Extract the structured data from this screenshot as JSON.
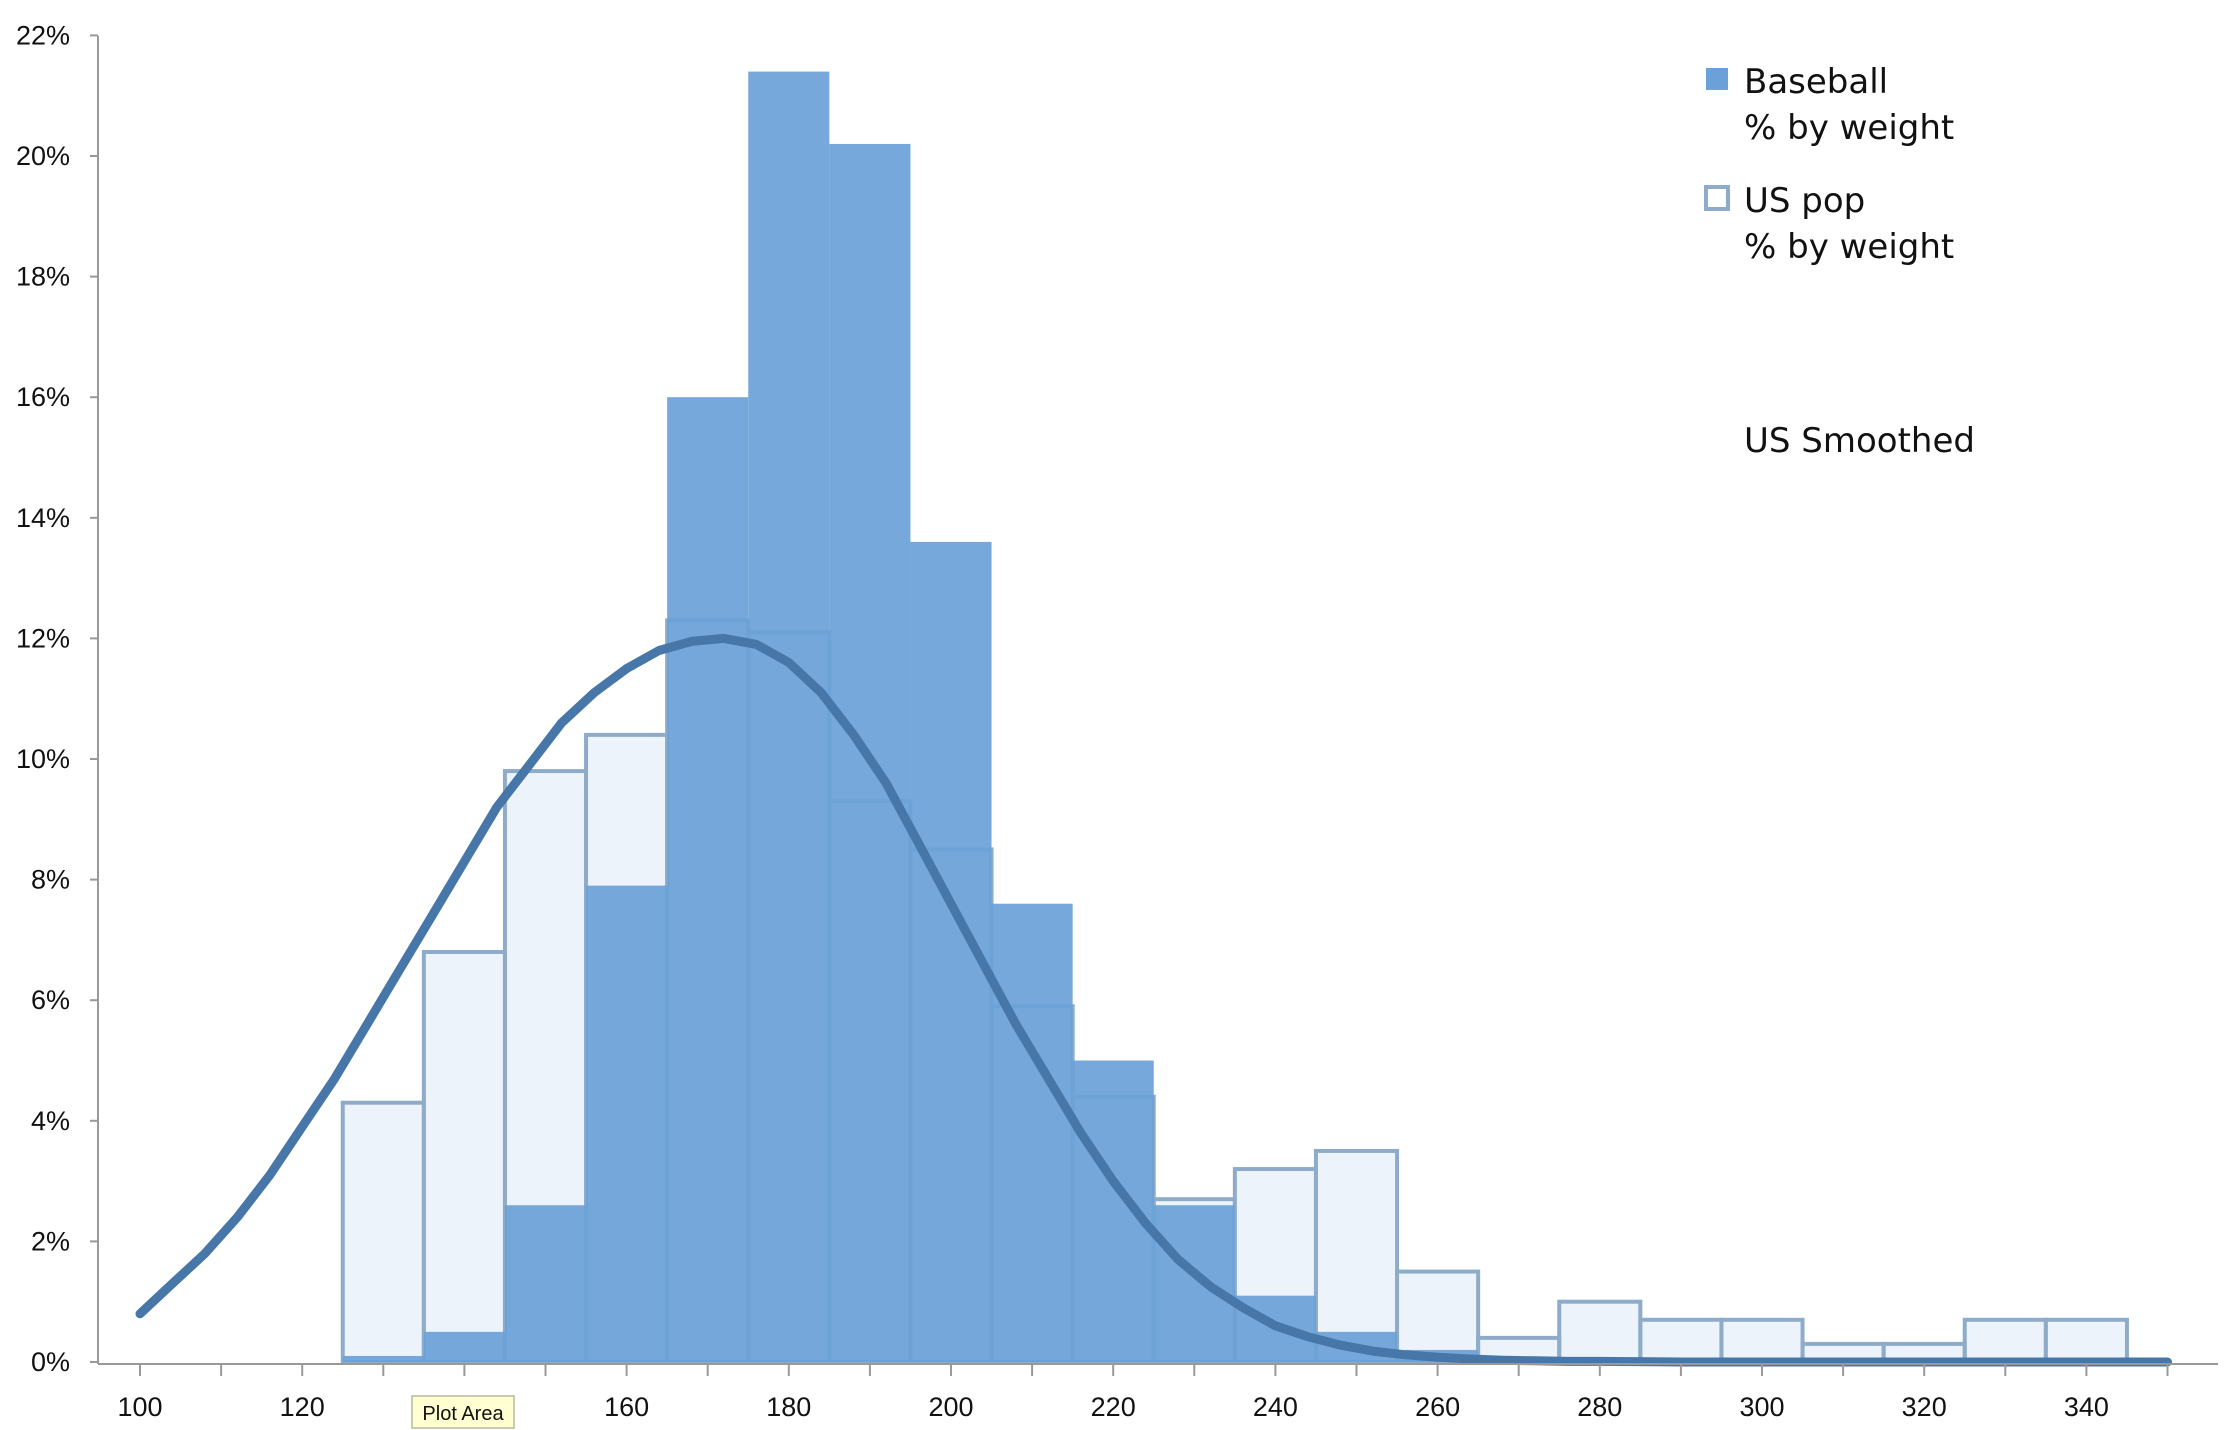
{
  "chart_data": {
    "type": "bar",
    "x_ticks": [
      "100",
      "120",
      "140",
      "160",
      "180",
      "200",
      "220",
      "240",
      "260",
      "280",
      "300",
      "320",
      "340"
    ],
    "y_ticks": [
      "0%",
      "2%",
      "4%",
      "6%",
      "8%",
      "10%",
      "12%",
      "14%",
      "16%",
      "18%",
      "20%",
      "22%"
    ],
    "xlim": [
      100,
      350
    ],
    "ylim": [
      0,
      22
    ],
    "bin_width": 10,
    "bin_starts": [
      125,
      135,
      145,
      155,
      165,
      175,
      185,
      195,
      205,
      215,
      225,
      235,
      245,
      255,
      265,
      275,
      285,
      295,
      305,
      315,
      325,
      335
    ],
    "series": [
      {
        "name": "Baseball\n% by weight",
        "type": "bar",
        "color": "#6aa1d8",
        "values": [
          0.1,
          0.5,
          2.6,
          7.9,
          16.0,
          21.4,
          20.2,
          13.6,
          7.6,
          5.0,
          2.6,
          1.1,
          0.5,
          0.2,
          0,
          0,
          0,
          0,
          0,
          0,
          0,
          0
        ]
      },
      {
        "name": "US pop\n% by weight",
        "type": "bar-outline",
        "color": "#8eacc9",
        "fill": "rgba(214,228,245,0.45)",
        "values": [
          4.3,
          6.8,
          9.8,
          10.4,
          12.3,
          12.1,
          9.3,
          8.5,
          5.9,
          4.4,
          2.7,
          3.2,
          3.5,
          1.5,
          0.4,
          1.0,
          0.7,
          0.7,
          0.3,
          0.3,
          0.7,
          0.7
        ]
      },
      {
        "name": "US Smoothed",
        "type": "line",
        "color": "#4776a8",
        "x": [
          100,
          104,
          108,
          112,
          116,
          120,
          124,
          128,
          132,
          136,
          140,
          144,
          148,
          152,
          156,
          160,
          164,
          168,
          172,
          176,
          180,
          184,
          188,
          192,
          196,
          200,
          204,
          208,
          212,
          216,
          220,
          224,
          228,
          232,
          236,
          240,
          244,
          248,
          252,
          256,
          260,
          264,
          268,
          272,
          276,
          280,
          290,
          300,
          320,
          350
        ],
        "y": [
          0.8,
          1.3,
          1.8,
          2.4,
          3.1,
          3.9,
          4.7,
          5.6,
          6.5,
          7.4,
          8.3,
          9.2,
          9.9,
          10.6,
          11.1,
          11.5,
          11.8,
          11.95,
          12.0,
          11.9,
          11.6,
          11.1,
          10.4,
          9.6,
          8.6,
          7.6,
          6.6,
          5.6,
          4.7,
          3.8,
          3.0,
          2.3,
          1.7,
          1.25,
          0.9,
          0.6,
          0.42,
          0.28,
          0.18,
          0.12,
          0.08,
          0.05,
          0.03,
          0.02,
          0.01,
          0.01,
          0,
          0,
          0,
          0
        ]
      }
    ],
    "legend_position": "top-right",
    "grid": false,
    "tooltip": "Plot Area"
  }
}
